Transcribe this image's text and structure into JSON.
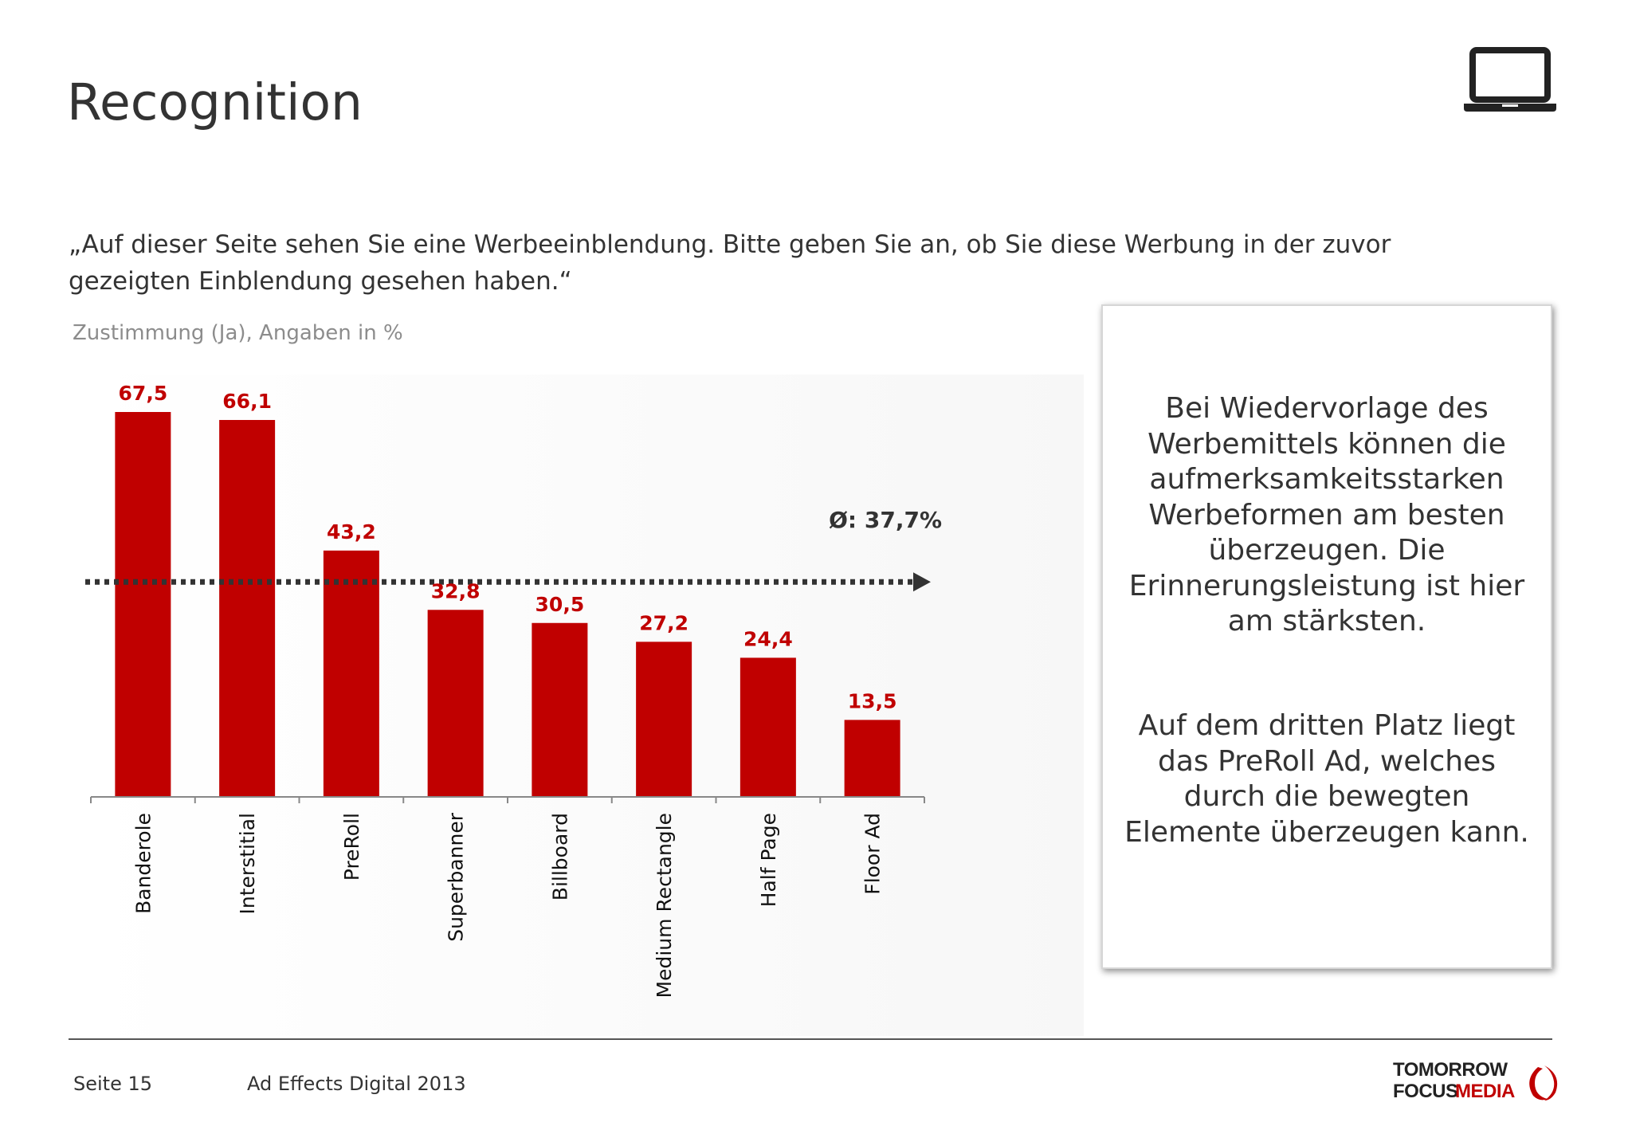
{
  "page": {
    "title": "Recognition",
    "question": "„Auf dieser Seite sehen Sie eine Werbeeinblendung. Bitte geben Sie an, ob Sie diese Werbung in der zuvor gezeigten Einblendung gesehen haben.“",
    "unit_label": "Zustimmung (Ja), Angaben in %",
    "device_icon": "laptop-icon"
  },
  "callout": {
    "paragraph_1": "Bei Wiedervorlage des Werbemittels können die aufmerksamkeitsstarken Werbeformen am besten überzeugen. Die Erinnerungsleistung ist hier am stärksten.",
    "paragraph_2": "Auf dem dritten Platz liegt das PreRoll Ad, welches durch die bewegten Elemente überzeugen kann."
  },
  "footer": {
    "page_number": "Seite 15",
    "report_name": "Ad Effects Digital 2013",
    "logo_line_1": "TOMORROW",
    "logo_line_2a": "FOCUS",
    "logo_line_2b": "MEDIA"
  },
  "colors": {
    "bar": "#c00000",
    "value_label": "#c00000",
    "average_line": "#333333",
    "text": "#333333",
    "muted_text": "#8c8c8c"
  },
  "chart_data": {
    "type": "bar",
    "categories": [
      "Banderole",
      "Interstitial",
      "PreRoll",
      "Superbanner",
      "Billboard",
      "Medium Rectangle",
      "Half Page",
      "Floor Ad"
    ],
    "values": [
      67.5,
      66.1,
      43.2,
      32.8,
      30.5,
      27.2,
      24.4,
      13.5
    ],
    "value_labels": [
      "67,5",
      "66,1",
      "43,2",
      "32,8",
      "30,5",
      "27,2",
      "24,4",
      "13,5"
    ],
    "ylim": [
      0,
      67.5
    ],
    "average": 37.7,
    "average_label": "Ø: 37,7%",
    "grid": false,
    "legend": "none"
  }
}
